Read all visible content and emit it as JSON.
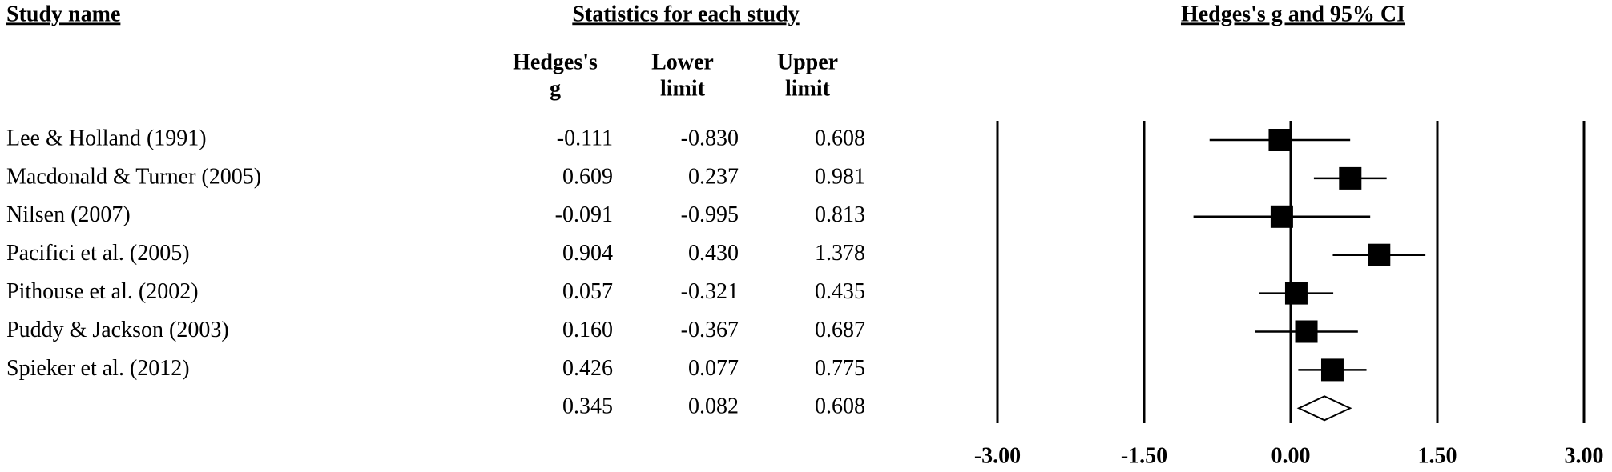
{
  "chart_data": {
    "type": "forest",
    "headings": [
      "Study name",
      "Statistics for each study",
      "Hedges's g and 95% CI"
    ],
    "categories": [
      "Lee & Holland (1991)",
      "Macdonald & Turner (2005)",
      "Nilsen (2007)",
      "Pacifici et al. (2005)",
      "Pithouse et al. (2002)",
      "Puddy & Jackson (2003)",
      "Spieker et al. (2012)"
    ],
    "columns": [
      {
        "header": [
          "Hedges's",
          "g"
        ],
        "values": [
          -0.111,
          0.609,
          -0.091,
          0.904,
          0.057,
          0.16,
          0.426
        ],
        "value_labels": [
          "-0.111",
          "0.609",
          "-0.091",
          "0.904",
          "0.057",
          "0.160",
          "0.426"
        ]
      },
      {
        "header": [
          "Lower",
          "limit"
        ],
        "values": [
          -0.83,
          0.237,
          -0.995,
          0.43,
          -0.321,
          -0.367,
          0.077
        ],
        "value_labels": [
          "-0.830",
          "0.237",
          "-0.995",
          "0.430",
          "-0.321",
          "-0.367",
          "0.077"
        ]
      },
      {
        "header": [
          "Upper",
          "limit"
        ],
        "values": [
          0.608,
          0.981,
          0.813,
          1.378,
          0.435,
          0.687,
          0.775
        ],
        "value_labels": [
          "0.608",
          "0.981",
          "0.813",
          "1.378",
          "0.435",
          "0.687",
          "0.775"
        ]
      }
    ],
    "summary": {
      "values": [
        0.345,
        0.082,
        0.608
      ],
      "value_labels": [
        "0.345",
        "0.082",
        "0.608"
      ]
    },
    "xlim": [
      -3,
      3
    ],
    "xticks": [
      {
        "value": -3,
        "label": "-3.00"
      },
      {
        "value": -1.5,
        "label": "-1.50"
      },
      {
        "value": 0,
        "label": "0.00"
      },
      {
        "value": 1.5,
        "label": "1.50"
      },
      {
        "value": 3,
        "label": "3.00"
      }
    ],
    "grid": true,
    "color": "#000000"
  }
}
